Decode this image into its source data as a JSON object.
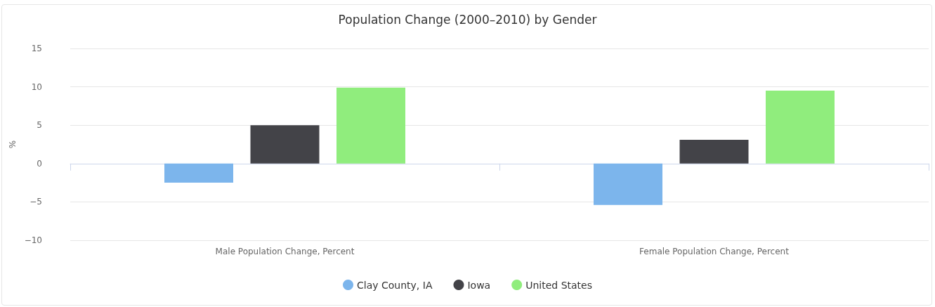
{
  "chart_data": {
    "type": "bar",
    "title": "Population Change (2000–2010) by Gender",
    "ylabel": "%",
    "categories": [
      "Male Population Change, Percent",
      "Female Population Change, Percent"
    ],
    "series": [
      {
        "name": "Clay County, IA",
        "color": "#7cb5ec",
        "values": [
          -2.5,
          -5.4
        ]
      },
      {
        "name": "Iowa",
        "color": "#434348",
        "values": [
          5.0,
          3.1
        ]
      },
      {
        "name": "United States",
        "color": "#90ed7d",
        "values": [
          9.9,
          9.5
        ]
      }
    ],
    "ylim": [
      -10,
      15
    ],
    "yticks": [
      -10,
      -5,
      0,
      5,
      10,
      15
    ],
    "grid": "y",
    "legend": "bottom"
  }
}
